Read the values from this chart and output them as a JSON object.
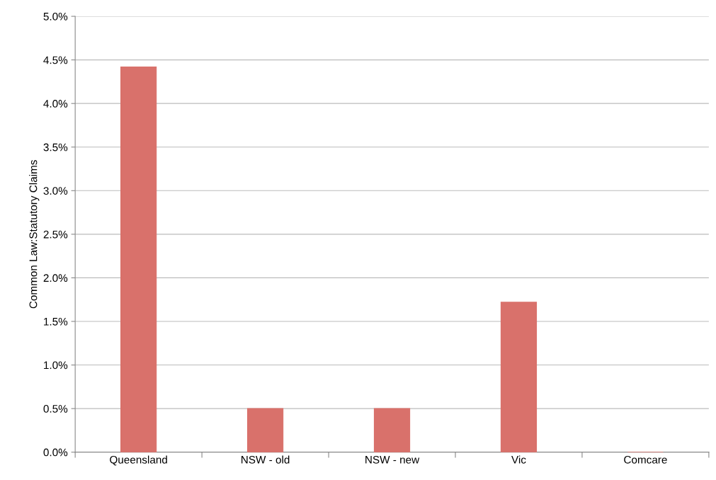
{
  "chart_data": {
    "type": "bar",
    "ylabel": "Common Law:Statutory Claims",
    "categories": [
      "Queensland",
      "NSW - old",
      "NSW - new",
      "Vic",
      "Comcare"
    ],
    "values": [
      4.42,
      0.5,
      0.5,
      1.72,
      0
    ],
    "color": "#d9716b",
    "ylim": [
      0,
      5
    ],
    "yticks": [
      {
        "value": 0,
        "label": "0.0%"
      },
      {
        "value": 0.5,
        "label": "0.5%"
      },
      {
        "value": 1,
        "label": "1.0%"
      },
      {
        "value": 1.5,
        "label": "1.5%"
      },
      {
        "value": 2,
        "label": "2.0%"
      },
      {
        "value": 2.5,
        "label": "2.5%"
      },
      {
        "value": 3,
        "label": "3.0%"
      },
      {
        "value": 3.5,
        "label": "3.5%"
      },
      {
        "value": 4,
        "label": "4.0%"
      },
      {
        "value": 4.5,
        "label": "4.5%"
      },
      {
        "value": 5,
        "label": "5.0%"
      }
    ],
    "grid": "y"
  }
}
